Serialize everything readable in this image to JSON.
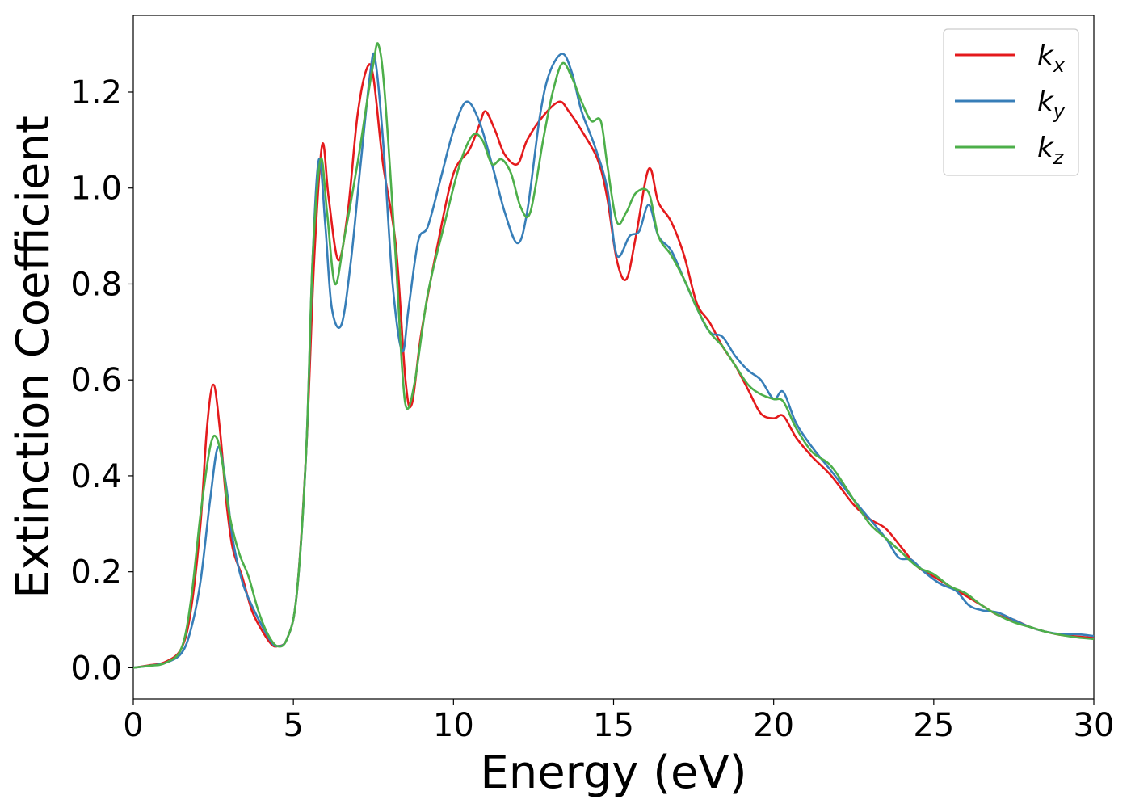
{
  "chart_data": {
    "type": "line",
    "title": "",
    "xlabel": "Energy (eV)",
    "ylabel": "Extinction Coefficient",
    "xlim": [
      0,
      30
    ],
    "ylim": [
      -0.065,
      1.36
    ],
    "xticks": [
      0,
      5,
      10,
      15,
      20,
      25,
      30
    ],
    "yticks": [
      0.0,
      0.2,
      0.4,
      0.6,
      0.8,
      1.0,
      1.2
    ],
    "xtick_labels": [
      "0",
      "5",
      "10",
      "15",
      "20",
      "25",
      "30"
    ],
    "ytick_labels": [
      "0.0",
      "0.2",
      "0.4",
      "0.6",
      "0.8",
      "1.0",
      "1.2"
    ],
    "grid": false,
    "legend_position": "top-right",
    "series": [
      {
        "name": "k_x",
        "label_base": "k",
        "label_sub": "x",
        "color": "#e41a1c",
        "points": [
          [
            0,
            0
          ],
          [
            0.5,
            0.005
          ],
          [
            1,
            0.012
          ],
          [
            1.5,
            0.04
          ],
          [
            1.8,
            0.12
          ],
          [
            2.1,
            0.3
          ],
          [
            2.3,
            0.5
          ],
          [
            2.5,
            0.59
          ],
          [
            2.7,
            0.5
          ],
          [
            2.9,
            0.35
          ],
          [
            3.1,
            0.25
          ],
          [
            3.4,
            0.19
          ],
          [
            3.7,
            0.12
          ],
          [
            4.0,
            0.08
          ],
          [
            4.3,
            0.05
          ],
          [
            4.5,
            0.045
          ],
          [
            4.8,
            0.06
          ],
          [
            5.1,
            0.15
          ],
          [
            5.4,
            0.45
          ],
          [
            5.65,
            0.85
          ],
          [
            5.9,
            1.09
          ],
          [
            6.1,
            0.98
          ],
          [
            6.4,
            0.85
          ],
          [
            6.7,
            0.95
          ],
          [
            7.0,
            1.15
          ],
          [
            7.3,
            1.25
          ],
          [
            7.5,
            1.23
          ],
          [
            7.8,
            1.05
          ],
          [
            8.2,
            0.88
          ],
          [
            8.5,
            0.6
          ],
          [
            8.7,
            0.55
          ],
          [
            9.0,
            0.7
          ],
          [
            9.5,
            0.88
          ],
          [
            10.0,
            1.03
          ],
          [
            10.5,
            1.08
          ],
          [
            10.8,
            1.13
          ],
          [
            11.0,
            1.16
          ],
          [
            11.3,
            1.12
          ],
          [
            11.6,
            1.07
          ],
          [
            12.0,
            1.05
          ],
          [
            12.3,
            1.1
          ],
          [
            12.8,
            1.15
          ],
          [
            13.3,
            1.18
          ],
          [
            13.6,
            1.16
          ],
          [
            14.0,
            1.12
          ],
          [
            14.5,
            1.06
          ],
          [
            14.8,
            0.98
          ],
          [
            15.1,
            0.85
          ],
          [
            15.4,
            0.81
          ],
          [
            15.7,
            0.9
          ],
          [
            16.1,
            1.04
          ],
          [
            16.4,
            0.97
          ],
          [
            16.8,
            0.93
          ],
          [
            17.2,
            0.86
          ],
          [
            17.6,
            0.76
          ],
          [
            18.0,
            0.72
          ],
          [
            18.4,
            0.67
          ],
          [
            18.8,
            0.63
          ],
          [
            19.2,
            0.58
          ],
          [
            19.6,
            0.53
          ],
          [
            20.0,
            0.52
          ],
          [
            20.3,
            0.525
          ],
          [
            20.7,
            0.48
          ],
          [
            21.2,
            0.44
          ],
          [
            21.8,
            0.4
          ],
          [
            22.5,
            0.34
          ],
          [
            23.0,
            0.31
          ],
          [
            23.5,
            0.29
          ],
          [
            24.0,
            0.25
          ],
          [
            24.5,
            0.21
          ],
          [
            25.0,
            0.19
          ],
          [
            25.5,
            0.17
          ],
          [
            26.0,
            0.15
          ],
          [
            26.5,
            0.13
          ],
          [
            27.0,
            0.11
          ],
          [
            27.5,
            0.1
          ],
          [
            28.0,
            0.085
          ],
          [
            28.5,
            0.075
          ],
          [
            29.0,
            0.068
          ],
          [
            29.5,
            0.065
          ],
          [
            30.0,
            0.062
          ]
        ]
      },
      {
        "name": "k_y",
        "label_base": "k",
        "label_sub": "y",
        "color": "#377eb8",
        "points": [
          [
            0,
            0
          ],
          [
            0.5,
            0.004
          ],
          [
            1,
            0.01
          ],
          [
            1.5,
            0.03
          ],
          [
            1.8,
            0.08
          ],
          [
            2.1,
            0.18
          ],
          [
            2.4,
            0.35
          ],
          [
            2.65,
            0.46
          ],
          [
            2.9,
            0.38
          ],
          [
            3.1,
            0.27
          ],
          [
            3.4,
            0.18
          ],
          [
            3.7,
            0.13
          ],
          [
            4.0,
            0.09
          ],
          [
            4.3,
            0.055
          ],
          [
            4.5,
            0.045
          ],
          [
            4.8,
            0.06
          ],
          [
            5.1,
            0.15
          ],
          [
            5.4,
            0.45
          ],
          [
            5.6,
            0.85
          ],
          [
            5.8,
            1.06
          ],
          [
            6.0,
            0.92
          ],
          [
            6.2,
            0.75
          ],
          [
            6.5,
            0.715
          ],
          [
            6.8,
            0.85
          ],
          [
            7.1,
            1.05
          ],
          [
            7.4,
            1.24
          ],
          [
            7.55,
            1.27
          ],
          [
            7.8,
            1.1
          ],
          [
            8.1,
            0.8
          ],
          [
            8.4,
            0.66
          ],
          [
            8.6,
            0.75
          ],
          [
            8.9,
            0.89
          ],
          [
            9.2,
            0.92
          ],
          [
            9.6,
            1.02
          ],
          [
            10.0,
            1.12
          ],
          [
            10.4,
            1.18
          ],
          [
            10.8,
            1.14
          ],
          [
            11.2,
            1.05
          ],
          [
            11.6,
            0.95
          ],
          [
            12.0,
            0.885
          ],
          [
            12.3,
            0.95
          ],
          [
            12.7,
            1.15
          ],
          [
            13.0,
            1.24
          ],
          [
            13.4,
            1.28
          ],
          [
            13.7,
            1.24
          ],
          [
            14.0,
            1.16
          ],
          [
            14.4,
            1.09
          ],
          [
            14.8,
            1.0
          ],
          [
            15.1,
            0.86
          ],
          [
            15.5,
            0.9
          ],
          [
            15.8,
            0.91
          ],
          [
            16.1,
            0.965
          ],
          [
            16.4,
            0.9
          ],
          [
            16.8,
            0.87
          ],
          [
            17.2,
            0.81
          ],
          [
            17.6,
            0.75
          ],
          [
            18.0,
            0.7
          ],
          [
            18.4,
            0.69
          ],
          [
            18.8,
            0.65
          ],
          [
            19.2,
            0.62
          ],
          [
            19.6,
            0.6
          ],
          [
            20.0,
            0.56
          ],
          [
            20.3,
            0.575
          ],
          [
            20.7,
            0.51
          ],
          [
            21.2,
            0.46
          ],
          [
            21.8,
            0.41
          ],
          [
            22.5,
            0.35
          ],
          [
            23.0,
            0.31
          ],
          [
            23.5,
            0.27
          ],
          [
            23.9,
            0.23
          ],
          [
            24.3,
            0.225
          ],
          [
            24.7,
            0.2
          ],
          [
            25.2,
            0.175
          ],
          [
            25.7,
            0.16
          ],
          [
            26.1,
            0.13
          ],
          [
            26.5,
            0.12
          ],
          [
            27.0,
            0.115
          ],
          [
            27.5,
            0.1
          ],
          [
            28.0,
            0.085
          ],
          [
            28.5,
            0.075
          ],
          [
            29.0,
            0.07
          ],
          [
            29.5,
            0.07
          ],
          [
            30.0,
            0.066
          ]
        ]
      },
      {
        "name": "k_z",
        "label_base": "k",
        "label_sub": "z",
        "color": "#4daf4a",
        "points": [
          [
            0,
            0
          ],
          [
            0.5,
            0.004
          ],
          [
            1,
            0.01
          ],
          [
            1.5,
            0.04
          ],
          [
            1.8,
            0.14
          ],
          [
            2.1,
            0.32
          ],
          [
            2.4,
            0.46
          ],
          [
            2.6,
            0.48
          ],
          [
            2.8,
            0.42
          ],
          [
            3.0,
            0.32
          ],
          [
            3.3,
            0.24
          ],
          [
            3.6,
            0.19
          ],
          [
            3.9,
            0.12
          ],
          [
            4.2,
            0.07
          ],
          [
            4.5,
            0.045
          ],
          [
            4.8,
            0.06
          ],
          [
            5.1,
            0.15
          ],
          [
            5.4,
            0.45
          ],
          [
            5.6,
            0.85
          ],
          [
            5.85,
            1.06
          ],
          [
            6.05,
            0.95
          ],
          [
            6.3,
            0.8
          ],
          [
            6.6,
            0.9
          ],
          [
            7.0,
            1.05
          ],
          [
            7.3,
            1.18
          ],
          [
            7.5,
            1.26
          ],
          [
            7.65,
            1.3
          ],
          [
            7.85,
            1.2
          ],
          [
            8.2,
            0.85
          ],
          [
            8.4,
            0.62
          ],
          [
            8.55,
            0.54
          ],
          [
            8.8,
            0.6
          ],
          [
            9.2,
            0.78
          ],
          [
            9.7,
            0.92
          ],
          [
            10.2,
            1.05
          ],
          [
            10.6,
            1.11
          ],
          [
            10.9,
            1.1
          ],
          [
            11.2,
            1.05
          ],
          [
            11.5,
            1.06
          ],
          [
            11.8,
            1.03
          ],
          [
            12.1,
            0.96
          ],
          [
            12.4,
            0.95
          ],
          [
            12.8,
            1.1
          ],
          [
            13.1,
            1.2
          ],
          [
            13.4,
            1.26
          ],
          [
            13.7,
            1.23
          ],
          [
            14.0,
            1.18
          ],
          [
            14.3,
            1.14
          ],
          [
            14.6,
            1.14
          ],
          [
            14.8,
            1.05
          ],
          [
            15.1,
            0.93
          ],
          [
            15.4,
            0.95
          ],
          [
            15.7,
            0.99
          ],
          [
            16.1,
            0.99
          ],
          [
            16.4,
            0.9
          ],
          [
            16.8,
            0.86
          ],
          [
            17.2,
            0.81
          ],
          [
            17.6,
            0.75
          ],
          [
            18.0,
            0.7
          ],
          [
            18.4,
            0.67
          ],
          [
            18.8,
            0.63
          ],
          [
            19.2,
            0.59
          ],
          [
            19.6,
            0.57
          ],
          [
            20.0,
            0.56
          ],
          [
            20.3,
            0.555
          ],
          [
            20.7,
            0.5
          ],
          [
            21.2,
            0.45
          ],
          [
            21.8,
            0.42
          ],
          [
            22.5,
            0.35
          ],
          [
            23.0,
            0.3
          ],
          [
            23.5,
            0.27
          ],
          [
            24.0,
            0.24
          ],
          [
            24.5,
            0.21
          ],
          [
            25.0,
            0.195
          ],
          [
            25.5,
            0.17
          ],
          [
            26.0,
            0.155
          ],
          [
            26.5,
            0.13
          ],
          [
            27.0,
            0.11
          ],
          [
            27.5,
            0.095
          ],
          [
            28.0,
            0.085
          ],
          [
            28.5,
            0.075
          ],
          [
            29.0,
            0.068
          ],
          [
            29.5,
            0.063
          ],
          [
            30.0,
            0.06
          ]
        ]
      }
    ]
  }
}
